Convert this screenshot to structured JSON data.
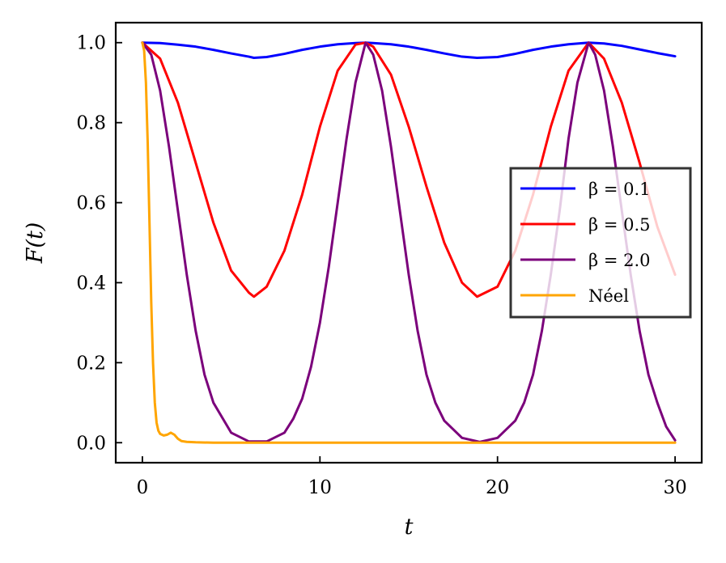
{
  "chart_data": {
    "type": "line",
    "xlabel": "t",
    "ylabel": "F(t)",
    "xlim": [
      -1.5,
      31.5
    ],
    "ylim": [
      -0.05,
      1.05
    ],
    "xticks": [
      0,
      10,
      20,
      30
    ],
    "yticks": [
      0.0,
      0.2,
      0.4,
      0.6,
      0.8,
      1.0
    ],
    "xtick_labels": [
      "0",
      "10",
      "20",
      "30"
    ],
    "ytick_labels": [
      "0.0",
      "0.2",
      "0.4",
      "0.6",
      "0.8",
      "1.0"
    ],
    "grid": false,
    "legend_position": "center-right",
    "series": [
      {
        "name": "β = 0.1",
        "color": "#0000ff",
        "x": [
          0,
          1,
          2,
          3,
          4,
          5,
          6,
          6.28,
          7,
          8,
          9,
          10,
          11,
          12,
          12.57,
          13,
          14,
          15,
          16,
          17,
          18,
          18.85,
          20,
          21,
          22,
          23,
          24,
          25.13,
          26,
          27,
          28,
          29,
          30
        ],
        "y": [
          1.0,
          0.999,
          0.995,
          0.99,
          0.982,
          0.973,
          0.965,
          0.962,
          0.964,
          0.972,
          0.982,
          0.99,
          0.996,
          0.999,
          1.0,
          0.999,
          0.996,
          0.99,
          0.982,
          0.973,
          0.965,
          0.962,
          0.964,
          0.972,
          0.982,
          0.99,
          0.996,
          1.0,
          0.998,
          0.992,
          0.983,
          0.974,
          0.966
        ]
      },
      {
        "name": "β = 0.5",
        "color": "#ff0000",
        "x": [
          0,
          1,
          2,
          3,
          4,
          5,
          6,
          6.28,
          7,
          8,
          9,
          10,
          11,
          12,
          12.57,
          13,
          14,
          15,
          16,
          17,
          18,
          18.85,
          20,
          21,
          22,
          23,
          24,
          25.13,
          26,
          27,
          28,
          29,
          30
        ],
        "y": [
          1.0,
          0.96,
          0.85,
          0.7,
          0.55,
          0.43,
          0.375,
          0.365,
          0.39,
          0.48,
          0.62,
          0.79,
          0.93,
          0.995,
          1.0,
          0.99,
          0.92,
          0.79,
          0.64,
          0.5,
          0.4,
          0.365,
          0.39,
          0.48,
          0.62,
          0.79,
          0.93,
          1.0,
          0.96,
          0.85,
          0.7,
          0.54,
          0.42
        ]
      },
      {
        "name": "β = 2.0",
        "color": "#7b007b",
        "x": [
          0,
          0.5,
          1,
          1.5,
          2,
          2.5,
          3,
          3.5,
          4,
          5,
          6,
          7,
          8,
          8.5,
          9,
          9.5,
          10,
          10.5,
          11,
          11.5,
          12,
          12.57,
          13,
          13.5,
          14,
          14.5,
          15,
          15.5,
          16,
          16.5,
          17,
          18,
          19,
          20,
          21,
          21.5,
          22,
          22.5,
          23,
          23.5,
          24,
          24.5,
          25.13,
          25.5,
          26,
          26.5,
          27,
          27.5,
          28,
          28.5,
          29,
          29.5,
          30
        ],
        "y": [
          1.0,
          0.97,
          0.88,
          0.74,
          0.58,
          0.42,
          0.28,
          0.17,
          0.1,
          0.025,
          0.003,
          0.003,
          0.025,
          0.06,
          0.11,
          0.19,
          0.3,
          0.44,
          0.6,
          0.76,
          0.9,
          1.0,
          0.97,
          0.88,
          0.74,
          0.58,
          0.42,
          0.28,
          0.17,
          0.1,
          0.055,
          0.012,
          0.002,
          0.012,
          0.055,
          0.1,
          0.17,
          0.28,
          0.42,
          0.58,
          0.76,
          0.9,
          1.0,
          0.97,
          0.88,
          0.74,
          0.58,
          0.42,
          0.28,
          0.17,
          0.1,
          0.04,
          0.006
        ]
      },
      {
        "name": "Néel",
        "color": "#ffa500",
        "x": [
          0,
          0.1,
          0.2,
          0.3,
          0.4,
          0.5,
          0.6,
          0.7,
          0.8,
          0.9,
          1.0,
          1.2,
          1.4,
          1.6,
          1.8,
          2.0,
          2.2,
          2.5,
          3,
          4,
          6,
          10,
          15,
          20,
          25,
          30
        ],
        "y": [
          1.0,
          0.98,
          0.9,
          0.75,
          0.55,
          0.35,
          0.2,
          0.1,
          0.05,
          0.03,
          0.022,
          0.018,
          0.02,
          0.025,
          0.02,
          0.01,
          0.004,
          0.002,
          0.001,
          0.0,
          0.0,
          0.0,
          0.0,
          0.0,
          0.0,
          0.0
        ]
      }
    ]
  }
}
